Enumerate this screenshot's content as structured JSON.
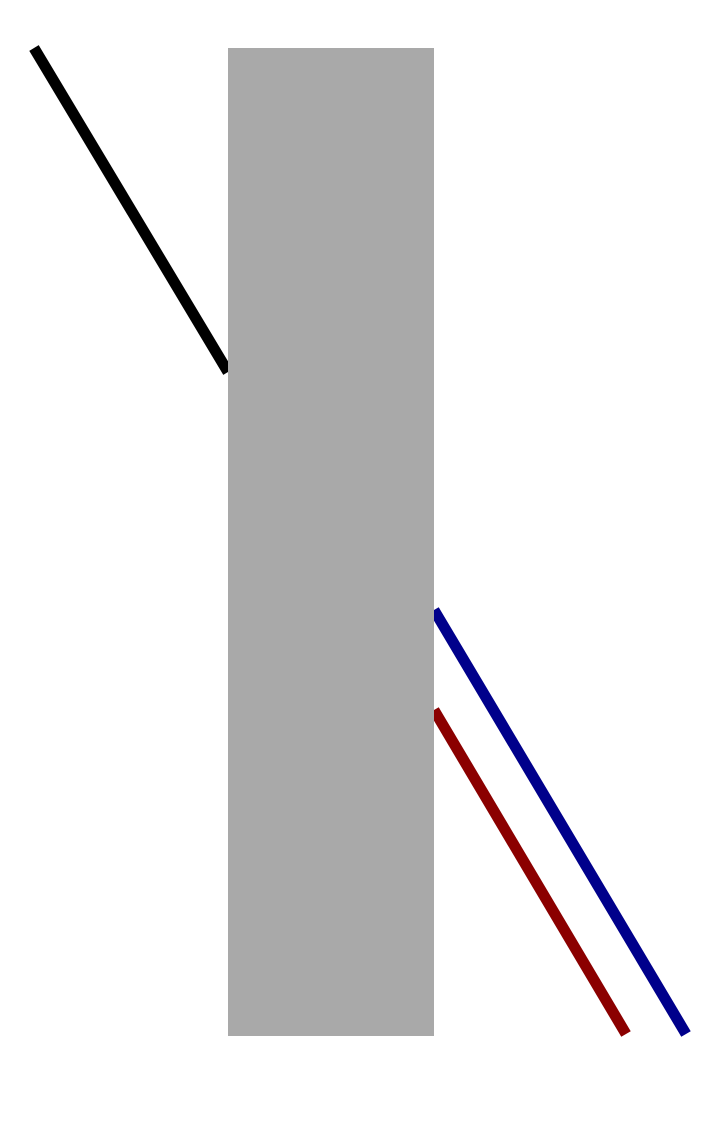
{
  "illusion": {
    "occluder_color": "#a9a9a9",
    "background_color": "#ffffff",
    "lines": [
      {
        "name": "incoming-line",
        "color": "#000000"
      },
      {
        "name": "exit-line-blue",
        "color": "#00008b"
      },
      {
        "name": "exit-line-red",
        "color": "#8b0000"
      }
    ]
  }
}
